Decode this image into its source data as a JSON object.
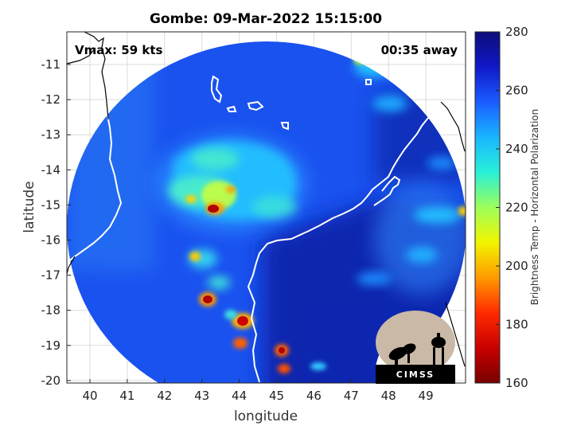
{
  "title": "Gombe: 09-Mar-2022 15:15:00",
  "vmax_label": "Vmax: 59 kts",
  "time_label": "00:35 away",
  "x_axis": {
    "label": "longitude",
    "ticks": [
      "40",
      "41",
      "42",
      "43",
      "44",
      "45",
      "46",
      "47",
      "48",
      "49"
    ]
  },
  "y_axis": {
    "label": "latitude",
    "ticks": [
      "-11",
      "-12",
      "-13",
      "-14",
      "-15",
      "-16",
      "-17",
      "-18",
      "-19",
      "-20"
    ]
  },
  "colorbar": {
    "label": "Brightness Temp - Horizontal Polarization",
    "ticks": [
      "280",
      "260",
      "240",
      "220",
      "200",
      "180",
      "160"
    ],
    "colors": [
      "#0c0d7a",
      "#1018c8",
      "#1a5cff",
      "#19b6ff",
      "#28f0d8",
      "#9dff5a",
      "#f2f500",
      "#ff9a00",
      "#ff2a00",
      "#b00000",
      "#780000"
    ]
  },
  "logo_text": "CIMSS"
}
